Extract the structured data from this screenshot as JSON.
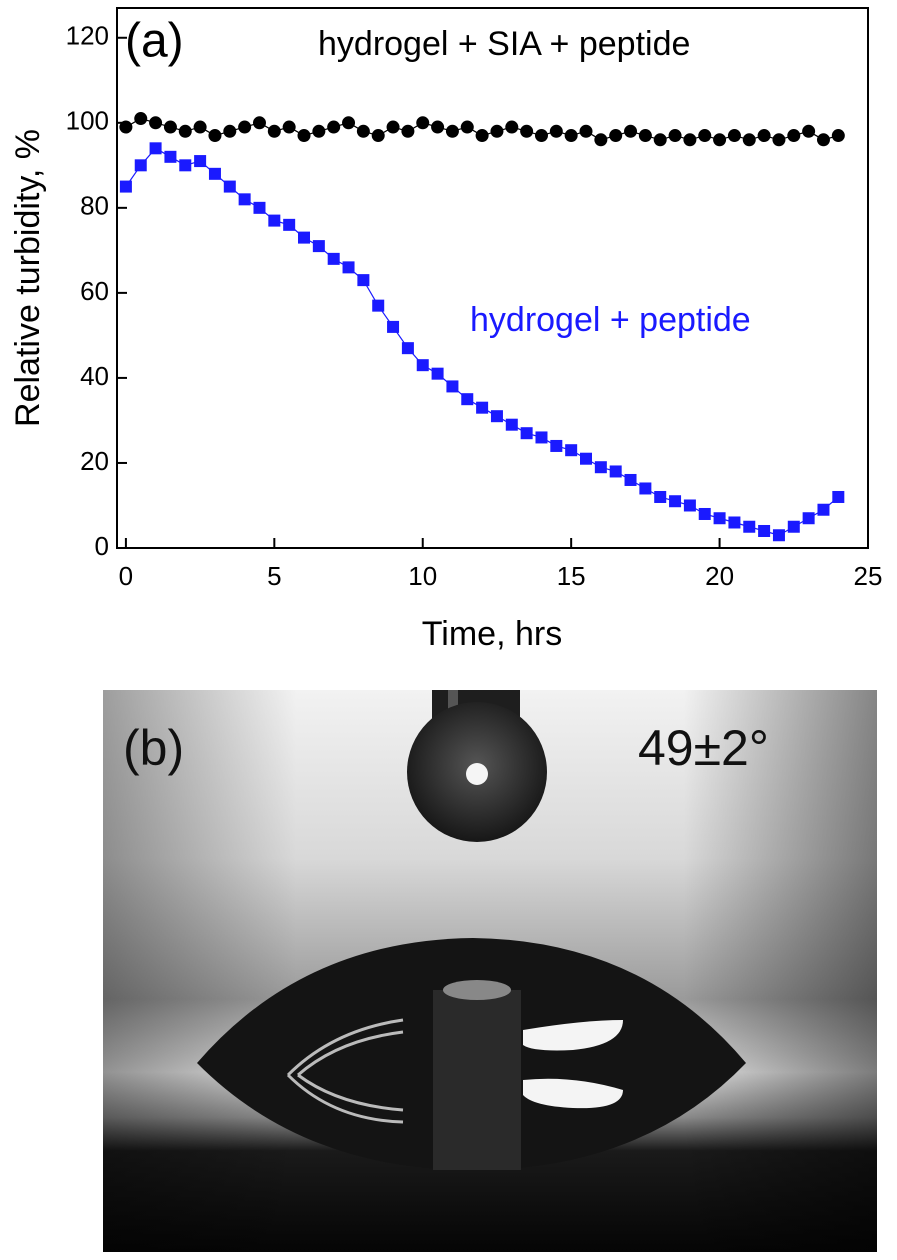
{
  "chart_data": {
    "type": "scatter",
    "panel_label": "(a)",
    "x_label": "Time, hrs",
    "y_label": "Relative turbidity, %",
    "xlim": [
      -0.3,
      25
    ],
    "ylim": [
      0,
      127
    ],
    "xticks": [
      0,
      5,
      10,
      15,
      20,
      25
    ],
    "yticks": [
      0,
      20,
      40,
      60,
      80,
      100,
      120
    ],
    "x": [
      0,
      0.5,
      1,
      1.5,
      2,
      2.5,
      3,
      3.5,
      4,
      4.5,
      5,
      5.5,
      6,
      6.5,
      7,
      7.5,
      8,
      8.5,
      9,
      9.5,
      10,
      10.5,
      11,
      11.5,
      12,
      12.5,
      13,
      13.5,
      14,
      14.5,
      15,
      15.5,
      16,
      16.5,
      17,
      17.5,
      18,
      18.5,
      19,
      19.5,
      20,
      20.5,
      21,
      21.5,
      22,
      22.5,
      23,
      23.5,
      24
    ],
    "series": [
      {
        "name": "hydrogel + SIA + peptide",
        "color": "#000000",
        "marker": "circle",
        "values": [
          99,
          101,
          100,
          99,
          98,
          99,
          97,
          98,
          99,
          100,
          98,
          99,
          97,
          98,
          99,
          100,
          98,
          97,
          99,
          98,
          100,
          99,
          98,
          99,
          97,
          98,
          99,
          98,
          97,
          98,
          97,
          98,
          96,
          97,
          98,
          97,
          96,
          97,
          96,
          97,
          96,
          97,
          96,
          97,
          96,
          97,
          98,
          96,
          97
        ]
      },
      {
        "name": "hydrogel + peptide",
        "color": "#1a1aff",
        "marker": "square",
        "values": [
          85,
          90,
          94,
          92,
          90,
          91,
          88,
          85,
          82,
          80,
          77,
          76,
          73,
          71,
          68,
          66,
          63,
          57,
          52,
          47,
          43,
          41,
          38,
          35,
          33,
          31,
          29,
          27,
          26,
          24,
          23,
          21,
          19,
          18,
          16,
          14,
          12,
          11,
          10,
          8,
          7,
          6,
          5,
          4,
          3,
          5,
          7,
          9,
          12
        ]
      }
    ]
  },
  "photo": {
    "panel_label": "(b)",
    "annotation": "49±2°"
  }
}
